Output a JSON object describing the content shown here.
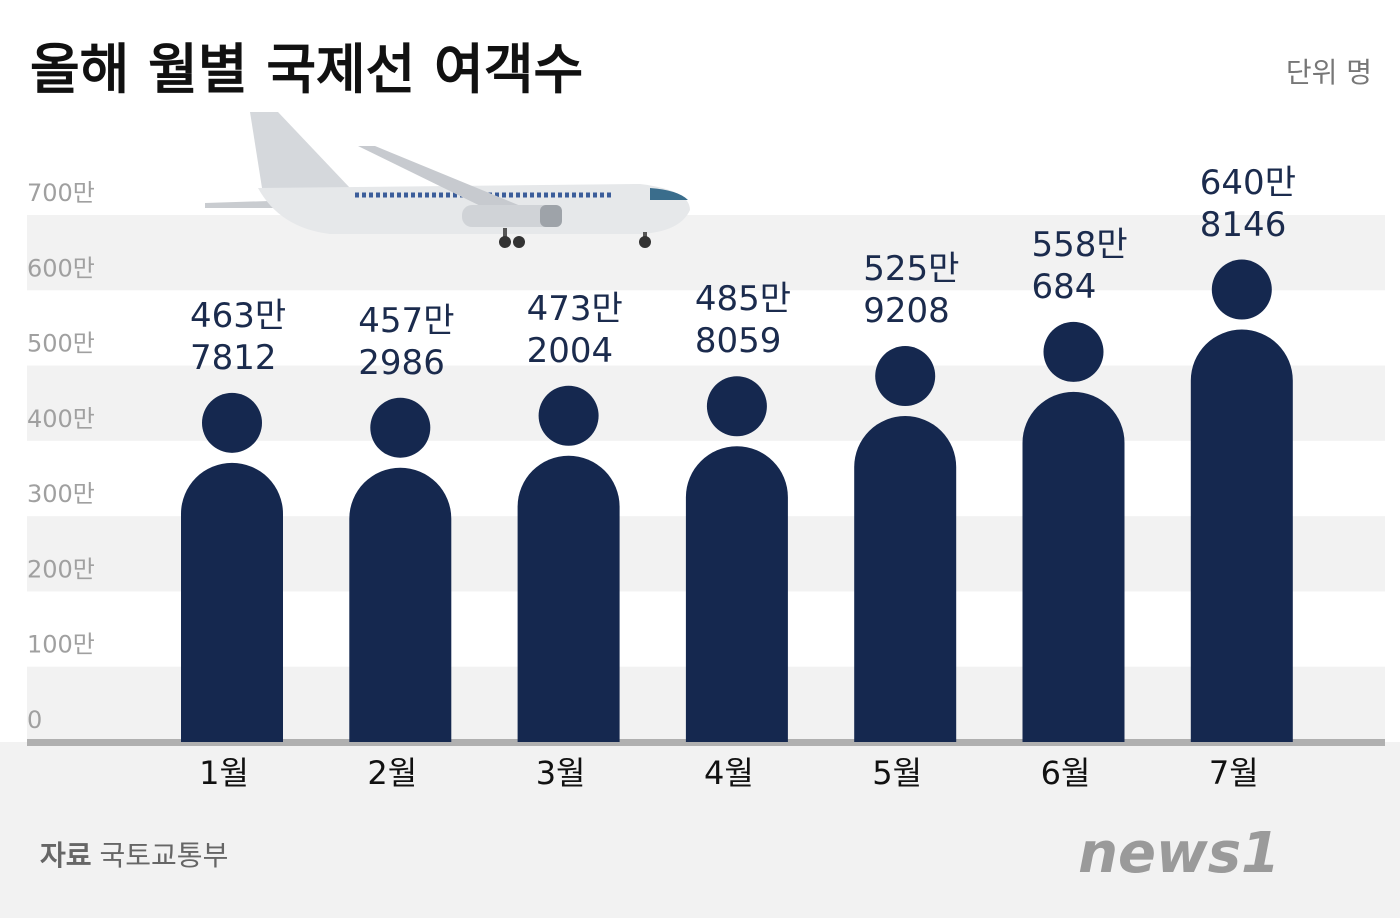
{
  "chart_data": {
    "type": "bar",
    "title": "올해 월별 국제선 여객수",
    "unit": "단위 명",
    "source": {
      "label": "자료",
      "text": "국토교통부"
    },
    "logo": "news1",
    "categories": [
      "1월",
      "2월",
      "3월",
      "4월",
      "5월",
      "6월",
      "7월"
    ],
    "values": [
      4637812,
      4572986,
      4732004,
      4858059,
      5259208,
      5580684,
      6408146
    ],
    "value_labels": [
      "463만\n7812",
      "457만\n2986",
      "473만\n2004",
      "485만\n8059",
      "525만\n9208",
      "558만\n684",
      "640만\n8146"
    ],
    "color": "#15284f",
    "ylim": [
      0,
      7000000
    ],
    "yticks": [
      0,
      {
        "value": 1000000,
        "label": "100만"
      },
      {
        "value": 2000000,
        "label": "200만"
      },
      {
        "value": 3000000,
        "label": "300만"
      },
      {
        "value": 4000000,
        "label": "400만"
      },
      {
        "value": 5000000,
        "label": "500만"
      },
      {
        "value": 6000000,
        "label": "600만"
      },
      {
        "value": 7000000,
        "label": "700만"
      }
    ]
  }
}
